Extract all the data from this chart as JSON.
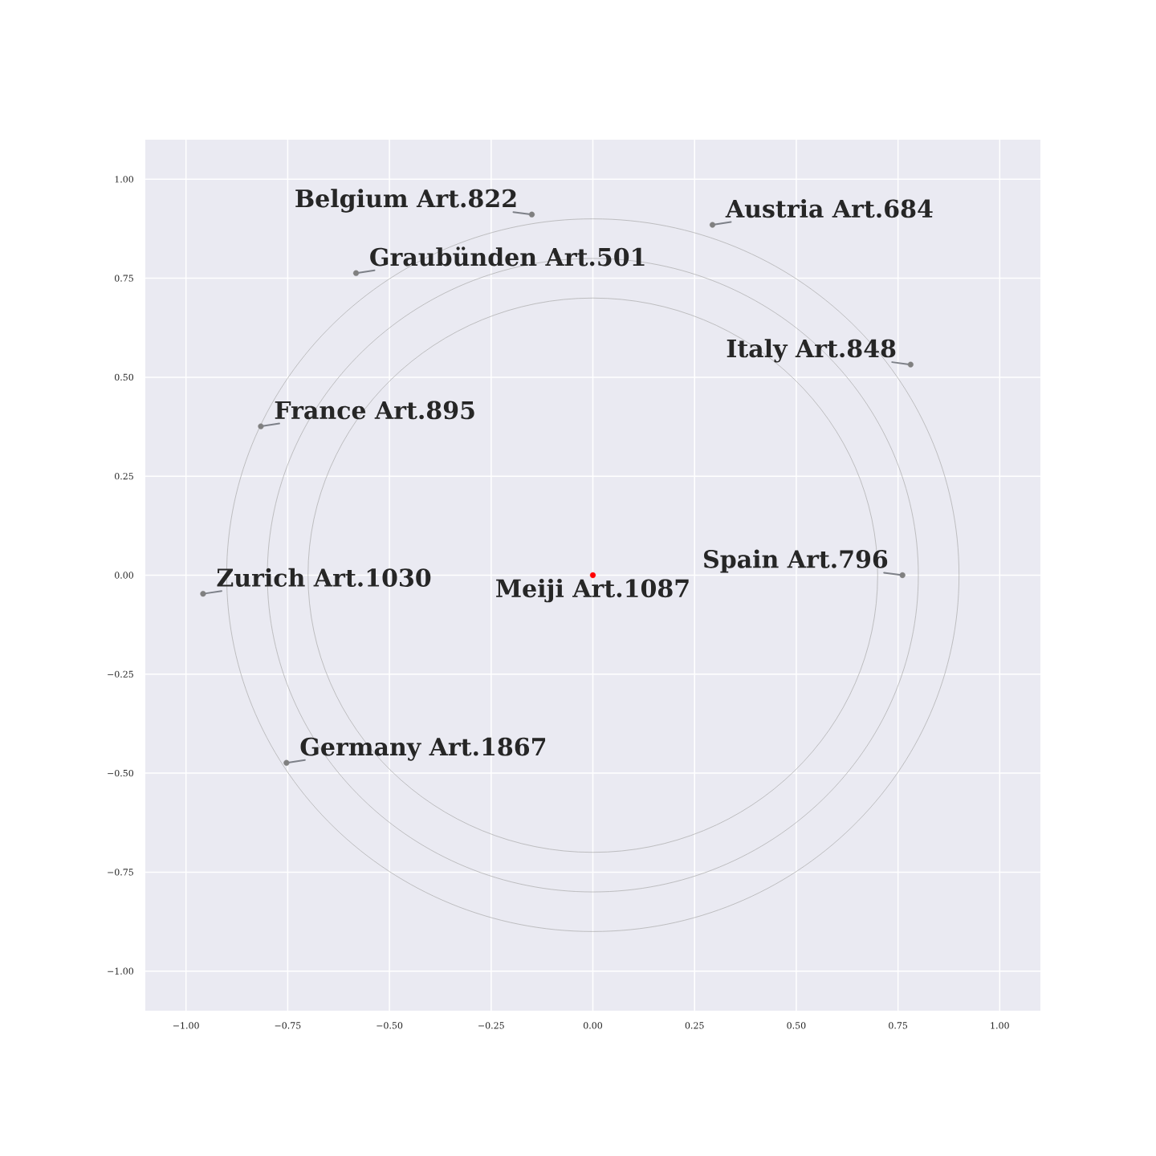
{
  "chart_data": {
    "type": "scatter",
    "xlim": [
      -1.1,
      1.1
    ],
    "ylim": [
      -1.1,
      1.1
    ],
    "xticks": [
      {
        "value": -1,
        "label": "−1.00"
      },
      {
        "value": -0.75,
        "label": "−0.75"
      },
      {
        "value": -0.5,
        "label": "−0.50"
      },
      {
        "value": -0.25,
        "label": "−0.25"
      },
      {
        "value": 0,
        "label": "0.00"
      },
      {
        "value": 0.25,
        "label": "0.25"
      },
      {
        "value": 0.5,
        "label": "0.50"
      },
      {
        "value": 0.75,
        "label": "0.75"
      },
      {
        "value": 1,
        "label": "1.00"
      }
    ],
    "yticks": [
      {
        "value": -1,
        "label": "−1.00"
      },
      {
        "value": -0.75,
        "label": "−0.75"
      },
      {
        "value": -0.5,
        "label": "−0.50"
      },
      {
        "value": -0.25,
        "label": "−0.25"
      },
      {
        "value": 0,
        "label": "0.00"
      },
      {
        "value": 0.25,
        "label": "0.25"
      },
      {
        "value": 0.5,
        "label": "0.50"
      },
      {
        "value": 0.75,
        "label": "0.75"
      },
      {
        "value": 1,
        "label": "1.00"
      }
    ],
    "grid": true,
    "marker": "circle",
    "series": [
      {
        "color": "#808080",
        "x": [
          -0.15,
          0.294,
          -0.582,
          0.781,
          -0.816,
          0.761,
          -0.958,
          -0.753
        ],
        "values": [
          0.911,
          0.885,
          0.763,
          0.532,
          0.376,
          0.0,
          -0.047,
          -0.474
        ]
      },
      {
        "color": "#ff0000",
        "x": [
          0.0
        ],
        "values": [
          0.0
        ]
      }
    ],
    "annotations": [
      {
        "text": "Belgium Art.822",
        "x": -0.15,
        "y": 0.911
      },
      {
        "text": "Austria Art.684",
        "x": 0.294,
        "y": 0.885
      },
      {
        "text": "Graubünden Art.501",
        "x": -0.582,
        "y": 0.763
      },
      {
        "text": "Italy Art.848",
        "x": 0.781,
        "y": 0.532
      },
      {
        "text": "France Art.895",
        "x": -0.816,
        "y": 0.376
      },
      {
        "text": "Spain Art.796",
        "x": 0.761,
        "y": 0.0
      },
      {
        "text": "Zurich Art.1030",
        "x": -0.958,
        "y": -0.047
      },
      {
        "text": "Meiji Art.1087",
        "x": 0.0,
        "y": 0.0
      },
      {
        "text": "Germany Art.1867",
        "x": -0.753,
        "y": -0.474
      }
    ]
  }
}
